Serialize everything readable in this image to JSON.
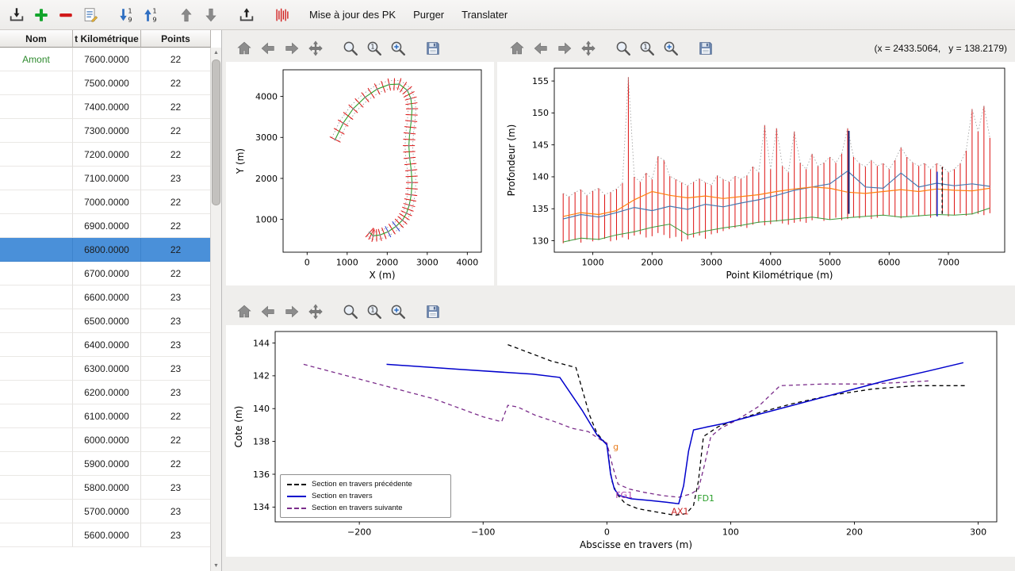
{
  "toolbar": {
    "icons": [
      {
        "name": "import-icon"
      },
      {
        "name": "add-icon"
      },
      {
        "name": "remove-icon"
      },
      {
        "name": "edit-icon"
      },
      {
        "name": "sort-desc-icon",
        "sep": true
      },
      {
        "name": "sort-asc-icon"
      },
      {
        "name": "move-up-icon",
        "sep": true
      },
      {
        "name": "move-down-icon"
      },
      {
        "name": "export-icon",
        "sep": true
      },
      {
        "name": "pk-marks-icon",
        "sep": true
      }
    ],
    "actions": [
      "Mise à jour des PK",
      "Purger",
      "Translater"
    ]
  },
  "mpl_toolbar": {
    "icons": [
      {
        "name": "home-icon"
      },
      {
        "name": "back-icon"
      },
      {
        "name": "forward-icon"
      },
      {
        "name": "pan-icon"
      },
      {
        "name": "zoom-icon",
        "sep": true
      },
      {
        "name": "zoom-one-icon"
      },
      {
        "name": "zoom-plus-icon"
      },
      {
        "name": "save-icon",
        "sep": true
      }
    ]
  },
  "readout": "(x = 2433.5064,   y = 138.2179)",
  "table": {
    "columns": [
      "Nom",
      "t Kilométrique",
      "Points"
    ],
    "selected_index": 8,
    "rows": [
      [
        "Amont",
        "7600.0000",
        "22"
      ],
      [
        "",
        "7500.0000",
        "22"
      ],
      [
        "",
        "7400.0000",
        "22"
      ],
      [
        "",
        "7300.0000",
        "22"
      ],
      [
        "",
        "7200.0000",
        "22"
      ],
      [
        "",
        "7100.0000",
        "23"
      ],
      [
        "",
        "7000.0000",
        "22"
      ],
      [
        "",
        "6900.0000",
        "22"
      ],
      [
        "",
        "6800.0000",
        "22"
      ],
      [
        "",
        "6700.0000",
        "22"
      ],
      [
        "",
        "6600.0000",
        "23"
      ],
      [
        "",
        "6500.0000",
        "23"
      ],
      [
        "",
        "6400.0000",
        "23"
      ],
      [
        "",
        "6300.0000",
        "23"
      ],
      [
        "",
        "6200.0000",
        "23"
      ],
      [
        "",
        "6100.0000",
        "22"
      ],
      [
        "",
        "6000.0000",
        "22"
      ],
      [
        "",
        "5900.0000",
        "22"
      ],
      [
        "",
        "5800.0000",
        "23"
      ],
      [
        "",
        "5700.0000",
        "23"
      ],
      [
        "",
        "5600.0000",
        "23"
      ]
    ]
  },
  "chart_data": [
    {
      "type": "scatter",
      "name": "plan-view",
      "xlabel": "X (m)",
      "ylabel": "Y (m)",
      "xlim": [
        -600,
        4350
      ],
      "ylim": [
        200,
        4650
      ],
      "xticks": [
        0,
        1000,
        2000,
        3000,
        4000
      ],
      "yticks": [
        1000,
        2000,
        3000,
        4000
      ],
      "centerline": [
        [
          700,
          2950
        ],
        [
          900,
          3350
        ],
        [
          1150,
          3700
        ],
        [
          1450,
          3980
        ],
        [
          1750,
          4180
        ],
        [
          2050,
          4290
        ],
        [
          2300,
          4300
        ],
        [
          2500,
          4150
        ],
        [
          2590,
          3950
        ],
        [
          2620,
          3700
        ],
        [
          2600,
          3400
        ],
        [
          2560,
          3100
        ],
        [
          2540,
          2800
        ],
        [
          2560,
          2500
        ],
        [
          2600,
          2200
        ],
        [
          2620,
          1900
        ],
        [
          2600,
          1600
        ],
        [
          2550,
          1350
        ],
        [
          2480,
          1150
        ],
        [
          2380,
          980
        ],
        [
          2220,
          830
        ],
        [
          2020,
          700
        ],
        [
          1820,
          620
        ],
        [
          1650,
          600
        ],
        [
          1560,
          680
        ]
      ],
      "tick_halfwidth": 150,
      "bank_offset": 95,
      "blue_sections": [
        20,
        21
      ],
      "colors": {
        "sections": "#dd1111",
        "centerline": "#2ca02c",
        "banks": "#999999",
        "selected": "#2233cc"
      }
    },
    {
      "type": "bar",
      "name": "profil-en-long",
      "xlabel": "Point Kilométrique (m)",
      "ylabel": "Profondeur (m)",
      "xlim": [
        350,
        7950
      ],
      "ylim": [
        128.2,
        157
      ],
      "xticks": [
        1000,
        2000,
        3000,
        4000,
        5000,
        6000,
        7000
      ],
      "yticks": [
        130,
        135,
        140,
        145,
        150,
        155
      ],
      "bars": {
        "x0": 500,
        "dx": 100,
        "color": "#dd1111",
        "top": [
          137.4,
          136.9,
          137.6,
          138.0,
          137.1,
          137.8,
          138.2,
          137.2,
          137.6,
          138.1,
          139.0,
          155.6,
          140.0,
          139.2,
          140.6,
          139.6,
          143.2,
          142.6,
          140.1,
          139.6,
          139.1,
          138.6,
          139.2,
          139.7,
          139.1,
          138.7,
          140.2,
          139.6,
          139.2,
          140.1,
          139.7,
          140.2,
          141.6,
          140.7,
          148.1,
          141.2,
          147.6,
          141.7,
          140.7,
          147.1,
          142.2,
          141.2,
          143.6,
          141.7,
          142.2,
          143.1,
          142.2,
          143.6,
          147.6,
          143.1,
          142.1,
          141.6,
          142.6,
          141.7,
          142.1,
          141.2,
          142.6,
          144.6,
          143.1,
          142.2,
          141.7,
          142.1,
          141.2,
          142.1,
          141.6,
          140.7,
          141.2,
          142.1,
          144.1,
          150.6,
          147.1,
          151.1,
          146.1
        ],
        "bottom": [
          129.6,
          129.9,
          130.1,
          129.7,
          130.2,
          129.9,
          130.1,
          130.3,
          129.9,
          130.1,
          130.5,
          130.2,
          130.8,
          131.0,
          130.5,
          130.7,
          131.2,
          130.9,
          130.4,
          130.6,
          129.9,
          130.2,
          130.5,
          130.8,
          130.3,
          131.0,
          131.2,
          131.5,
          131.8,
          132.0,
          132.2,
          132.0,
          132.5,
          132.8,
          132.4,
          132.6,
          133.0,
          132.7,
          132.5,
          132.8,
          133.0,
          132.8,
          133.2,
          133.5,
          133.1,
          133.3,
          133.6,
          133.2,
          133.4,
          133.7,
          133.5,
          133.8,
          133.4,
          133.6,
          133.9,
          134.0,
          133.7,
          133.5,
          133.8,
          134.1,
          133.8,
          134.0,
          133.6,
          133.9,
          134.2,
          133.8,
          134.0,
          134.3,
          133.9,
          134.1,
          134.2,
          134.0,
          134.3
        ]
      },
      "envelope_color": "#9a9a9a",
      "line_x": [
        500,
        800,
        1100,
        1400,
        1700,
        2000,
        2300,
        2600,
        2900,
        3200,
        3500,
        3800,
        4100,
        4400,
        4700,
        5000,
        5300,
        5600,
        5900,
        6200,
        6500,
        6800,
        7100,
        7400,
        7700
      ],
      "lines": [
        {
          "name": "fond",
          "color": "#3a9a3a",
          "width": 1,
          "values": [
            129.8,
            130.4,
            130.2,
            130.9,
            131.4,
            132.1,
            132.6,
            130.9,
            131.5,
            132.0,
            132.4,
            132.9,
            133.1,
            133.4,
            133.7,
            133.3,
            133.6,
            133.8,
            134.0,
            133.7,
            133.9,
            134.1,
            134.0,
            134.2,
            135.1
          ]
        },
        {
          "name": "ligne-eau",
          "color": "#4878b0",
          "width": 1.2,
          "values": [
            133.4,
            134.1,
            133.7,
            134.4,
            135.2,
            134.7,
            135.4,
            134.9,
            135.7,
            135.3,
            135.9,
            136.4,
            137.1,
            137.9,
            138.4,
            138.9,
            140.9,
            138.4,
            138.2,
            140.6,
            138.4,
            139.0,
            138.6,
            138.9,
            138.5
          ]
        },
        {
          "name": "berge",
          "color": "#ff7f0e",
          "width": 1.2,
          "values": [
            133.8,
            134.4,
            134.1,
            134.7,
            136.4,
            137.7,
            137.1,
            136.7,
            137.0,
            136.6,
            136.9,
            137.2,
            137.7,
            138.1,
            138.4,
            138.2,
            137.6,
            137.4,
            137.7,
            138.0,
            137.7,
            138.1,
            137.9,
            137.8,
            138.2
          ]
        }
      ],
      "markers": [
        {
          "x": 5320,
          "y0": 134.2,
          "y1": 147.2,
          "color": "#1b2a7a",
          "width": 2,
          "dash": ""
        },
        {
          "x": 6810,
          "y0": 133.8,
          "y1": 140.8,
          "color": "#2233cc",
          "width": 1.6,
          "dash": ""
        },
        {
          "x": 6895,
          "y0": 134.2,
          "y1": 141.5,
          "color": "#111111",
          "width": 1.3,
          "dash": "4,3"
        }
      ]
    },
    {
      "type": "line",
      "name": "section-en-travers",
      "xlabel": "Abscisse en travers (m)",
      "ylabel": "Cote (m)",
      "xlim": [
        -268,
        315
      ],
      "ylim": [
        133.1,
        144.7
      ],
      "xticks": [
        -200,
        -100,
        0,
        100,
        200,
        300
      ],
      "yticks": [
        134,
        136,
        138,
        140,
        142,
        144
      ],
      "series": [
        {
          "name": "Section en travers précédente",
          "color": "#000000",
          "dash": "5,4",
          "width": 1.3,
          "points": [
            [
              -80,
              143.9
            ],
            [
              -45,
              142.9
            ],
            [
              -25,
              142.5
            ],
            [
              -20,
              141.2
            ],
            [
              -14,
              139.6
            ],
            [
              -8,
              138.5
            ],
            [
              0,
              137.8
            ],
            [
              4,
              135.6
            ],
            [
              8,
              134.8
            ],
            [
              15,
              134.2
            ],
            [
              25,
              133.9
            ],
            [
              40,
              133.7
            ],
            [
              55,
              133.5
            ],
            [
              64,
              133.6
            ],
            [
              70,
              134.1
            ],
            [
              74,
              135.6
            ],
            [
              78,
              138.3
            ],
            [
              90,
              138.9
            ],
            [
              105,
              139.3
            ],
            [
              125,
              139.8
            ],
            [
              150,
              140.3
            ],
            [
              180,
              140.8
            ],
            [
              215,
              141.2
            ],
            [
              250,
              141.4
            ],
            [
              290,
              141.4
            ]
          ]
        },
        {
          "name": "Section en travers suivante",
          "color": "#7b2d8b",
          "dash": "5,4",
          "width": 1.3,
          "points": [
            [
              -245,
              142.7
            ],
            [
              -190,
              141.6
            ],
            [
              -140,
              140.6
            ],
            [
              -100,
              139.5
            ],
            [
              -85,
              139.2
            ],
            [
              -80,
              140.2
            ],
            [
              -72,
              140.1
            ],
            [
              -58,
              139.6
            ],
            [
              -42,
              139.2
            ],
            [
              -28,
              138.8
            ],
            [
              -15,
              138.6
            ],
            [
              -5,
              138.1
            ],
            [
              0,
              137.9
            ],
            [
              5,
              136.4
            ],
            [
              9,
              135.4
            ],
            [
              18,
              135.1
            ],
            [
              30,
              134.9
            ],
            [
              45,
              134.7
            ],
            [
              58,
              134.6
            ],
            [
              68,
              134.8
            ],
            [
              74,
              135.1
            ],
            [
              79,
              136.6
            ],
            [
              84,
              138.3
            ],
            [
              92,
              138.8
            ],
            [
              105,
              139.3
            ],
            [
              122,
              140.1
            ],
            [
              140,
              141.4
            ],
            [
              175,
              141.5
            ],
            [
              210,
              141.5
            ],
            [
              240,
              141.6
            ],
            [
              262,
              141.7
            ]
          ]
        },
        {
          "name": "Section en travers",
          "color": "#0000cc",
          "dash": "",
          "width": 1.5,
          "points": [
            [
              -178,
              142.7
            ],
            [
              -120,
              142.4
            ],
            [
              -60,
              142.1
            ],
            [
              -38,
              141.9
            ],
            [
              -20,
              139.9
            ],
            [
              -8,
              138.4
            ],
            [
              0,
              137.8
            ],
            [
              3,
              136.0
            ],
            [
              6,
              135.1
            ],
            [
              10,
              134.7
            ],
            [
              20,
              134.5
            ],
            [
              35,
              134.4
            ],
            [
              48,
              134.3
            ],
            [
              58,
              134.2
            ],
            [
              62,
              135.3
            ],
            [
              66,
              137.4
            ],
            [
              70,
              138.7
            ],
            [
              82,
              138.9
            ],
            [
              95,
              139.1
            ],
            [
              120,
              139.6
            ],
            [
              150,
              140.2
            ],
            [
              185,
              140.9
            ],
            [
              225,
              141.7
            ],
            [
              260,
              142.3
            ],
            [
              288,
              142.8
            ]
          ]
        }
      ],
      "annotations": [
        {
          "text": "g",
          "x": 5,
          "y": 137.5,
          "color": "#e87d1e"
        },
        {
          "text": "FG1",
          "x": 7,
          "y": 134.55,
          "color": "#aa44aa"
        },
        {
          "text": "AX1",
          "x": 52,
          "y": 133.55,
          "color": "#cc2222"
        },
        {
          "text": "FD1",
          "x": 73,
          "y": 134.35,
          "color": "#2ca02c"
        }
      ],
      "legend": [
        {
          "label": "Section en travers précédente",
          "color": "#000000",
          "dashed": true
        },
        {
          "label": "Section en travers",
          "color": "#0000cc",
          "dashed": false
        },
        {
          "label": "Section en travers suivante",
          "color": "#7b2d8b",
          "dashed": true
        }
      ]
    }
  ]
}
